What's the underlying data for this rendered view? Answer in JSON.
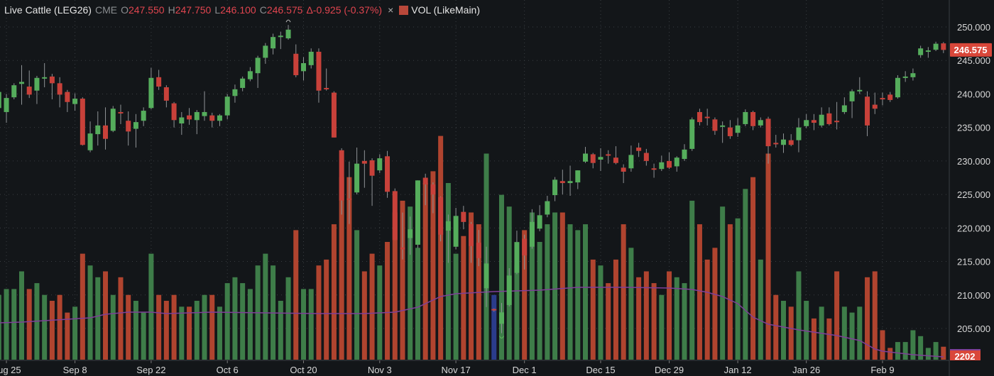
{
  "header": {
    "title": "Live Cattle (LEG26)",
    "exchange": "CME",
    "open_label": "O",
    "open": "247.550",
    "high_label": "H",
    "high": "247.750",
    "low_label": "L",
    "low": "246.100",
    "close_label": "C",
    "close": "246.575",
    "change": "Δ-0.925 (-0.37%)",
    "remove_icon": "×",
    "volume_legend": "VOL (LikeMain)"
  },
  "colors": {
    "background": "#131619",
    "up": "#55ad5c",
    "down": "#c8413a",
    "vol_up": "#3e7d49",
    "vol_down": "#b0442f",
    "vol_highlight": "#2b3c8c",
    "vol_ma": "#7e3f98",
    "grid": "#3a3e42",
    "axis_text": "#d8d8d8",
    "tag": "#d9473a"
  },
  "chart_data": {
    "type": "candlestick",
    "title": "Live Cattle (LEG26)",
    "ylim": [
      205,
      250
    ],
    "y_ticks": [
      "250.000",
      "245.000",
      "240.000",
      "235.000",
      "230.000",
      "225.000",
      "220.000",
      "215.000",
      "210.000",
      "205.000"
    ],
    "y_tick_values": [
      250,
      245,
      240,
      235,
      230,
      225,
      220,
      215,
      210,
      205
    ],
    "x_ticks": [
      {
        "index": 1,
        "label": "Aug 25"
      },
      {
        "index": 10,
        "label": "Sep 8"
      },
      {
        "index": 20,
        "label": "Sep 22"
      },
      {
        "index": 30,
        "label": "Oct 6"
      },
      {
        "index": 40,
        "label": "Oct 20"
      },
      {
        "index": 50,
        "label": "Nov 3"
      },
      {
        "index": 60,
        "label": "Nov 17"
      },
      {
        "index": 69,
        "label": "Dec 1"
      },
      {
        "index": 79,
        "label": "Dec 15"
      },
      {
        "index": 88,
        "label": "Dec 29"
      },
      {
        "index": 97,
        "label": "Jan 12"
      },
      {
        "index": 106,
        "label": "Jan 26"
      },
      {
        "index": 116,
        "label": "Feb 9"
      }
    ],
    "ohlc": [
      [
        237.9,
        240.8,
        236.5,
        240.3
      ],
      [
        237.3,
        240.0,
        235.7,
        239.4
      ],
      [
        239.5,
        241.6,
        239.2,
        241.3
      ],
      [
        241.5,
        244.3,
        238.4,
        241.8
      ],
      [
        241.1,
        243.5,
        239.4,
        239.9
      ],
      [
        240.5,
        242.7,
        238.5,
        242.4
      ],
      [
        242.3,
        244.6,
        241.0,
        242.5
      ],
      [
        242.6,
        243.0,
        239.2,
        241.6
      ],
      [
        241.6,
        242.5,
        238.0,
        239.9
      ],
      [
        240.3,
        240.6,
        237.3,
        238.8
      ],
      [
        238.5,
        240.1,
        237.5,
        239.3
      ],
      [
        239.3,
        239.5,
        232.3,
        232.4
      ],
      [
        231.6,
        235.9,
        231.3,
        234.1
      ],
      [
        234.0,
        237.4,
        232.3,
        235.3
      ],
      [
        235.3,
        238.0,
        231.7,
        233.3
      ],
      [
        234.5,
        238.2,
        234.3,
        237.8
      ],
      [
        237.3,
        238.4,
        235.5,
        237.1
      ],
      [
        236.0,
        237.4,
        232.3,
        234.4
      ],
      [
        234.8,
        237.0,
        232.0,
        235.8
      ],
      [
        236.0,
        238.0,
        235.2,
        237.5
      ],
      [
        237.9,
        243.9,
        237.7,
        242.4
      ],
      [
        242.5,
        243.6,
        240.6,
        241.1
      ],
      [
        241.0,
        241.3,
        238.0,
        239.0
      ],
      [
        238.6,
        238.8,
        235.0,
        236.1
      ],
      [
        235.6,
        237.3,
        233.9,
        236.5
      ],
      [
        236.8,
        237.9,
        235.4,
        236.2
      ],
      [
        236.1,
        237.6,
        234.0,
        237.3
      ],
      [
        236.7,
        240.4,
        236.0,
        237.3
      ],
      [
        236.8,
        237.2,
        235.0,
        236.0
      ],
      [
        236.0,
        237.0,
        235.2,
        236.8
      ],
      [
        236.8,
        240.0,
        236.2,
        239.6
      ],
      [
        239.7,
        241.4,
        238.7,
        240.7
      ],
      [
        240.9,
        242.6,
        240.4,
        242.3
      ],
      [
        242.2,
        244.0,
        241.9,
        243.4
      ],
      [
        243.1,
        245.7,
        240.9,
        245.4
      ],
      [
        245.4,
        247.6,
        244.5,
        247.2
      ],
      [
        246.8,
        249.0,
        245.9,
        248.5
      ],
      [
        248.6,
        249.3,
        246.7,
        248.7
      ],
      [
        248.3,
        250.3,
        248.1,
        249.6
      ],
      [
        246.0,
        247.4,
        242.5,
        242.8
      ],
      [
        243.4,
        245.5,
        242.0,
        244.6
      ],
      [
        244.3,
        246.8,
        243.8,
        246.3
      ],
      [
        246.3,
        246.8,
        238.7,
        240.5
      ],
      [
        240.9,
        243.8,
        240.5,
        240.7
      ],
      [
        240.2,
        240.4,
        233.5,
        233.5
      ],
      [
        231.6,
        231.9,
        222.0,
        224.1
      ],
      [
        224.4,
        229.9,
        220.6,
        224.2
      ],
      [
        225.3,
        232.0,
        225.0,
        229.6
      ],
      [
        230.0,
        231.6,
        226.0,
        229.6
      ],
      [
        230.1,
        230.4,
        223.3,
        227.8
      ],
      [
        228.6,
        231.0,
        228.2,
        230.4
      ],
      [
        230.7,
        231.5,
        224.5,
        225.4
      ],
      [
        225.5,
        225.9,
        218.2,
        218.2
      ],
      [
        217.1,
        222.3,
        215.3,
        216.8
      ],
      [
        218.5,
        221.7,
        216.0,
        219.8
      ],
      [
        217.5,
        227.1,
        217.0,
        227.1
      ],
      [
        227.5,
        228.1,
        223.4,
        226.5
      ],
      [
        226.5,
        226.8,
        222.2,
        225.0
      ],
      [
        224.6,
        224.7,
        218.0,
        219.0
      ],
      [
        219.6,
        222.0,
        214.8,
        221.0
      ],
      [
        217.2,
        223.0,
        216.8,
        221.8
      ],
      [
        222.4,
        223.3,
        219.8,
        220.9
      ],
      [
        220.6,
        220.9,
        214.8,
        217.3
      ],
      [
        217.8,
        219.7,
        214.3,
        215.5
      ],
      [
        211.0,
        217.2,
        208.2,
        214.7
      ],
      [
        207.9,
        208.0,
        207.5,
        207.7
      ],
      [
        205.7,
        208.8,
        204.3,
        207.4
      ],
      [
        208.5,
        214.0,
        208.3,
        212.9
      ],
      [
        213.3,
        219.6,
        213.1,
        217.9
      ],
      [
        218.4,
        219.0,
        213.8,
        215.9
      ],
      [
        217.2,
        222.8,
        216.9,
        220.9
      ],
      [
        219.9,
        223.4,
        219.5,
        221.9
      ],
      [
        222.0,
        224.8,
        221.6,
        224.0
      ],
      [
        224.9,
        227.6,
        224.0,
        227.2
      ],
      [
        227.0,
        228.7,
        225.0,
        226.7
      ],
      [
        226.7,
        229.3,
        224.8,
        227.0
      ],
      [
        226.8,
        228.6,
        225.8,
        228.6
      ],
      [
        229.9,
        232.1,
        229.7,
        231.1
      ],
      [
        231.0,
        231.2,
        228.9,
        229.7
      ],
      [
        230.2,
        231.9,
        228.5,
        230.6
      ],
      [
        231.0,
        231.6,
        229.6,
        230.9
      ],
      [
        230.5,
        232.2,
        229.5,
        229.7
      ],
      [
        229.0,
        229.5,
        226.7,
        228.4
      ],
      [
        228.9,
        232.3,
        228.4,
        230.9
      ],
      [
        232.0,
        232.7,
        230.6,
        231.5
      ],
      [
        231.2,
        231.8,
        229.3,
        230.0
      ],
      [
        228.9,
        229.6,
        227.5,
        228.7
      ],
      [
        228.8,
        230.8,
        228.5,
        229.8
      ],
      [
        230.0,
        231.3,
        228.8,
        229.0
      ],
      [
        229.2,
        230.7,
        228.4,
        230.5
      ],
      [
        230.3,
        232.5,
        230.0,
        231.7
      ],
      [
        231.8,
        236.5,
        231.5,
        236.2
      ],
      [
        237.3,
        237.8,
        235.3,
        235.8
      ],
      [
        236.6,
        237.8,
        235.3,
        236.4
      ],
      [
        236.2,
        236.5,
        233.9,
        234.5
      ],
      [
        235.1,
        235.9,
        232.7,
        235.3
      ],
      [
        235.0,
        236.1,
        233.3,
        233.7
      ],
      [
        234.2,
        236.4,
        233.6,
        235.3
      ],
      [
        235.5,
        237.7,
        235.2,
        237.3
      ],
      [
        237.3,
        237.5,
        234.6,
        235.2
      ],
      [
        235.3,
        236.5,
        235.0,
        236.1
      ],
      [
        236.3,
        236.6,
        229.6,
        232.2
      ],
      [
        232.7,
        233.9,
        232.0,
        232.5
      ],
      [
        232.4,
        234.1,
        231.2,
        233.2
      ],
      [
        233.1,
        234.0,
        232.2,
        232.4
      ],
      [
        233.1,
        236.4,
        231.3,
        235.0
      ],
      [
        235.2,
        237.0,
        234.9,
        236.1
      ],
      [
        236.1,
        237.0,
        234.6,
        235.7
      ],
      [
        235.3,
        238.0,
        235.0,
        236.9
      ],
      [
        237.1,
        238.0,
        235.3,
        235.5
      ],
      [
        236.0,
        238.8,
        234.7,
        235.9
      ],
      [
        237.3,
        239.5,
        237.0,
        238.3
      ],
      [
        238.9,
        240.7,
        236.4,
        240.4
      ],
      [
        240.5,
        242.5,
        240.0,
        240.6
      ],
      [
        239.6,
        240.4,
        233.7,
        235.3
      ],
      [
        238.4,
        240.2,
        237.0,
        237.8
      ],
      [
        239.4,
        240.2,
        238.3,
        239.3
      ],
      [
        239.9,
        240.3,
        238.8,
        239.1
      ],
      [
        239.5,
        242.8,
        239.3,
        242.4
      ],
      [
        242.4,
        243.4,
        241.8,
        242.6
      ],
      [
        242.5,
        243.8,
        242.0,
        243.1
      ],
      [
        245.8,
        247.2,
        245.4,
        246.8
      ],
      [
        246.4,
        247.0,
        245.4,
        246.5
      ],
      [
        246.6,
        247.8,
        246.4,
        247.5
      ],
      [
        247.55,
        247.75,
        246.1,
        246.575
      ]
    ],
    "volume": [
      11000,
      12000,
      12000,
      15000,
      12000,
      13000,
      11000,
      10000,
      11000,
      8000,
      9000,
      18000,
      16000,
      14000,
      15000,
      11000,
      14000,
      11000,
      10000,
      8000,
      18000,
      11000,
      10000,
      11000,
      9000,
      9000,
      10000,
      11000,
      11000,
      9000,
      13000,
      14000,
      13000,
      12000,
      16000,
      18000,
      16000,
      10000,
      14000,
      22000,
      12000,
      12000,
      16000,
      17000,
      23000,
      31000,
      31000,
      22000,
      15000,
      18000,
      16000,
      20000,
      25000,
      27000,
      26000,
      19000,
      30000,
      32000,
      38000,
      30000,
      18000,
      21000,
      25000,
      23000,
      35000,
      11000,
      28000,
      26000,
      16000,
      22000,
      25000,
      20000,
      23000,
      25000,
      25000,
      23000,
      22000,
      23000,
      17000,
      16000,
      13000,
      17000,
      23000,
      19000,
      14000,
      15000,
      13000,
      11000,
      15000,
      14000,
      13000,
      27000,
      23000,
      17000,
      19000,
      26000,
      23000,
      24000,
      29000,
      31000,
      17000,
      35000,
      11000,
      10000,
      9000,
      15000,
      10000,
      7000,
      9000,
      7000,
      15000,
      9000,
      8000,
      9000,
      14000,
      15000,
      5000,
      2000,
      3000,
      3000,
      5000,
      4000,
      2000,
      3000,
      2202
    ],
    "volume_ylim": [
      0,
      120000
    ],
    "volume_highlight_index": 65,
    "vol_ma_ylim": [
      0,
      36000
    ],
    "vol_ma_points": [
      [
        0,
        15600
      ],
      [
        3,
        15900
      ],
      [
        9,
        17100
      ],
      [
        12,
        17700
      ],
      [
        14,
        19200
      ],
      [
        17,
        20100
      ],
      [
        20,
        20100
      ],
      [
        22,
        19500
      ],
      [
        28,
        20100
      ],
      [
        35,
        19800
      ],
      [
        42,
        19500
      ],
      [
        48,
        19500
      ],
      [
        52,
        20100
      ],
      [
        55,
        22200
      ],
      [
        58,
        26700
      ],
      [
        60,
        27900
      ],
      [
        65,
        28800
      ],
      [
        71,
        29400
      ],
      [
        76,
        30600
      ],
      [
        82,
        30600
      ],
      [
        88,
        30300
      ],
      [
        91,
        29700
      ],
      [
        93,
        28500
      ],
      [
        95,
        26700
      ],
      [
        97,
        23700
      ],
      [
        99,
        18000
      ],
      [
        101,
        15000
      ],
      [
        105,
        12600
      ],
      [
        110,
        10200
      ],
      [
        113,
        8100
      ],
      [
        115,
        4500
      ],
      [
        116,
        3600
      ],
      [
        120,
        2100
      ],
      [
        124,
        1200
      ]
    ],
    "last_price_tag": "246.575",
    "last_volume_tag": "2202"
  }
}
